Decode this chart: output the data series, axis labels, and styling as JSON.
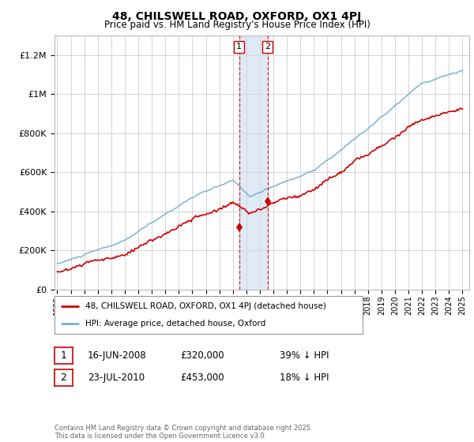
{
  "title": "48, CHILSWELL ROAD, OXFORD, OX1 4PJ",
  "subtitle": "Price paid vs. HM Land Registry's House Price Index (HPI)",
  "ylabel_ticks": [
    "£0",
    "£200K",
    "£400K",
    "£600K",
    "£800K",
    "£1M",
    "£1.2M"
  ],
  "ytick_values": [
    0,
    200000,
    400000,
    600000,
    800000,
    1000000,
    1200000
  ],
  "ylim": [
    0,
    1300000
  ],
  "xlim_start": 1994.8,
  "xlim_end": 2025.5,
  "hpi_color": "#7bafd4",
  "price_color": "#cc0000",
  "transaction1_date": 2008.46,
  "transaction2_date": 2010.56,
  "transaction1_price": 320000,
  "transaction2_price": 453000,
  "shade_color": "#ccdcee",
  "vline_color": "#cc0000",
  "legend_label1": "48, CHILSWELL ROAD, OXFORD, OX1 4PJ (detached house)",
  "legend_label2": "HPI: Average price, detached house, Oxford",
  "annotation1_date": "16-JUN-2008",
  "annotation1_price": "£320,000",
  "annotation1_pct": "39% ↓ HPI",
  "annotation2_date": "23-JUL-2010",
  "annotation2_price": "£453,000",
  "annotation2_pct": "18% ↓ HPI",
  "footer": "Contains HM Land Registry data © Crown copyright and database right 2025.\nThis data is licensed under the Open Government Licence v3.0.",
  "background_color": "#ffffff",
  "grid_color": "#cccccc"
}
